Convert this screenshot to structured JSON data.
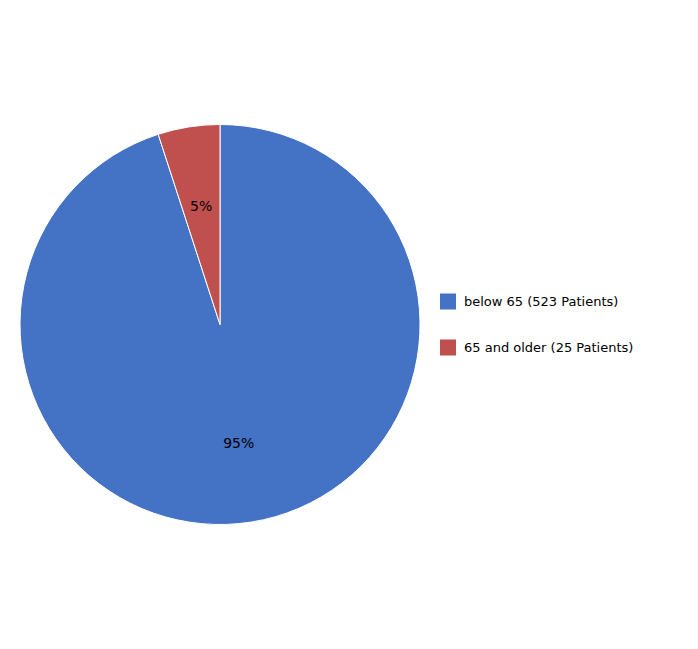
{
  "chart_data": {
    "type": "pie",
    "categories": [
      "below 65 (523 Patients)",
      "65 and older (25 Patients)"
    ],
    "values": [
      95,
      5
    ],
    "value_labels": [
      "95%",
      "5%"
    ],
    "colors": [
      "#4472C4",
      "#C0504D"
    ],
    "data_labels": true,
    "legend": "right"
  }
}
